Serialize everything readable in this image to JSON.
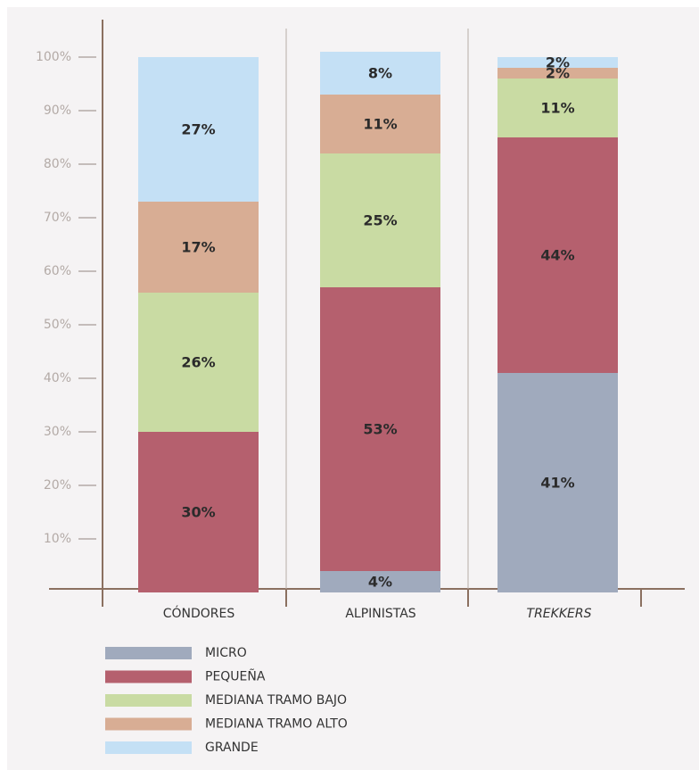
{
  "chart_data": {
    "type": "stacked_bar",
    "categories": [
      "CÓNDORES",
      "ALPINISTAS",
      "TREKKERS"
    ],
    "category_italic": [
      false,
      false,
      true
    ],
    "series": [
      {
        "name": "MICRO",
        "color": "#a0aabd",
        "values": [
          null,
          4,
          41
        ],
        "value_labels": [
          null,
          "4%",
          "41%"
        ]
      },
      {
        "name": "PEQUEÑA",
        "color": "#b5606e",
        "values": [
          30,
          53,
          44
        ],
        "value_labels": [
          "30%",
          "53%",
          "44%"
        ]
      },
      {
        "name": "MEDIANA TRAMO BAJO",
        "color": "#c9dba3",
        "values": [
          26,
          25,
          11
        ],
        "value_labels": [
          "26%",
          "25%",
          "11%"
        ]
      },
      {
        "name": "MEDIANA TRAMO ALTO",
        "color": "#d8ad94",
        "values": [
          17,
          11,
          2
        ],
        "value_labels": [
          "17%",
          "11%",
          "2%"
        ]
      },
      {
        "name": "GRANDE",
        "color": "#c4e0f5",
        "values": [
          27,
          8,
          2
        ],
        "value_labels": [
          "27%",
          "8%",
          "2%"
        ]
      }
    ],
    "ylim": [
      0,
      100
    ],
    "yticks": [
      {
        "value": 10,
        "label": "10%"
      },
      {
        "value": 20,
        "label": "20%"
      },
      {
        "value": 30,
        "label": "30%"
      },
      {
        "value": 40,
        "label": "40%"
      },
      {
        "value": 50,
        "label": "50%"
      },
      {
        "value": 60,
        "label": "60%"
      },
      {
        "value": 70,
        "label": "70%"
      },
      {
        "value": 80,
        "label": "80%"
      },
      {
        "value": 90,
        "label": "90%"
      },
      {
        "value": 100,
        "label": "100%"
      }
    ]
  }
}
